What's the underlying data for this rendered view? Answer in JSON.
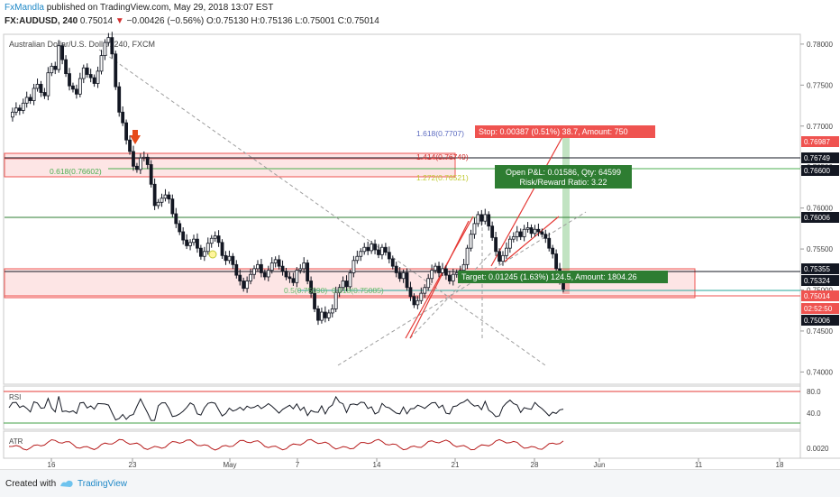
{
  "header": {
    "author": "FxMandla",
    "published_text": "published on TradingView.com, May 29, 2018 13:07 EST",
    "symbol": "FX:AUDUSD, 240",
    "last": "0.75014",
    "change": "−0.00426 (−0.56%)",
    "ohlc": "O:0.75130 H:0.75136 L:0.75001 C:0.75014"
  },
  "chart_data": {
    "type": "candlestick",
    "title": "Australian Dollar/U.S. Dollar, 240, FXCM",
    "ylim": [
      0.7385,
      0.7812
    ],
    "y_ticks": [
      "0.78000",
      "0.77500",
      "0.77000",
      "0.76500",
      "0.76000",
      "0.75500",
      "0.75000",
      "0.74500",
      "0.74000"
    ],
    "x_ticks": [
      "16",
      "23",
      "May",
      "7",
      "14",
      "21",
      "28",
      "Jun",
      "11",
      "18"
    ],
    "price_labels": [
      {
        "value": "0.76987",
        "color": "#ef5350"
      },
      {
        "value": "0.76749",
        "color": "#131722"
      },
      {
        "value": "0.76600",
        "color": "#131722"
      },
      {
        "value": "0.76006",
        "color": "#131722"
      },
      {
        "value": "0.75355",
        "color": "#131722"
      },
      {
        "value": "0.75324",
        "color": "#131722"
      },
      {
        "value": "0.75014",
        "color": "#ef5350"
      },
      {
        "value": "02:52:50",
        "color": "#ef5350"
      },
      {
        "value": "0.75006",
        "color": "#131722"
      }
    ],
    "fib_labels": [
      "1.618(0.7707)",
      "1.414(0.76749)",
      "1.272(0.76521)",
      "0.618(0.76602)",
      "0.5(0.75090)",
      "0.618(0.75085)"
    ],
    "position_labels": {
      "stop": "Stop: 0.00387 (0.51%) 38.7, Amount: 750",
      "pnl": "Open P&L: 0.01586, Qty: 64599",
      "rr": "Risk/Reward Ratio: 3.22",
      "target": "Target: 0.01245 (1.63%) 124.5, Amount: 1804.26"
    },
    "series": [
      {
        "values": [
          0.7711,
          0.7717,
          0.7722,
          0.7719,
          0.7728,
          0.7735,
          0.7731,
          0.7746,
          0.7751,
          0.7741,
          0.7737,
          0.7765,
          0.7773,
          0.7769,
          0.7798,
          0.7781,
          0.7764,
          0.7749,
          0.7745,
          0.7739,
          0.7758,
          0.7771,
          0.7763,
          0.7759,
          0.7752,
          0.7767,
          0.7786,
          0.7802,
          0.7808,
          0.7788,
          0.7748,
          0.7717,
          0.7704,
          0.7683,
          0.7669,
          0.7651,
          0.7647,
          0.7661,
          0.7662,
          0.7653,
          0.7629,
          0.7603,
          0.7607,
          0.7612,
          0.7616,
          0.7611,
          0.7593,
          0.7581,
          0.7571,
          0.7561,
          0.7554,
          0.7558,
          0.7562,
          0.7551,
          0.7541,
          0.7547,
          0.7557,
          0.7563,
          0.7566,
          0.7558,
          0.7542,
          0.7536,
          0.7541,
          0.7531,
          0.7518,
          0.7511,
          0.7502,
          0.7511,
          0.7519,
          0.7526,
          0.7531,
          0.7521,
          0.7516,
          0.7524,
          0.7533,
          0.7537,
          0.7529,
          0.7523,
          0.7516,
          0.7514,
          0.7509,
          0.7524,
          0.7526,
          0.7533,
          0.7511,
          0.7496,
          0.7477,
          0.7463,
          0.7473,
          0.7466,
          0.7472,
          0.7477,
          0.7497,
          0.7503,
          0.7511,
          0.7504,
          0.7521,
          0.7536,
          0.7541,
          0.7547,
          0.7552,
          0.7548,
          0.7556,
          0.7549,
          0.7543,
          0.7552,
          0.7546,
          0.7538,
          0.7529,
          0.7521,
          0.7514,
          0.7521,
          0.7503,
          0.7492,
          0.7482,
          0.7487,
          0.7496,
          0.7503,
          0.7514,
          0.7524,
          0.7529,
          0.7521,
          0.7526,
          0.7518,
          0.7511,
          0.7519,
          0.7521,
          0.7524,
          0.7531,
          0.7551,
          0.7568,
          0.7581,
          0.7592,
          0.7584,
          0.7592,
          0.7578,
          0.7564,
          0.7547,
          0.7535,
          0.7542,
          0.7551,
          0.7562,
          0.7565,
          0.7571,
          0.7565,
          0.7574,
          0.7576,
          0.7569,
          0.7574,
          0.7571,
          0.7568,
          0.7563,
          0.7551,
          0.7544,
          0.7526,
          0.7512,
          0.7501
        ]
      }
    ],
    "indicators": [
      {
        "name": "RSI",
        "ticks": [
          "80.0",
          "40.0"
        ]
      },
      {
        "name": "ATR",
        "ticks": [
          "0.0020"
        ]
      }
    ]
  }
}
